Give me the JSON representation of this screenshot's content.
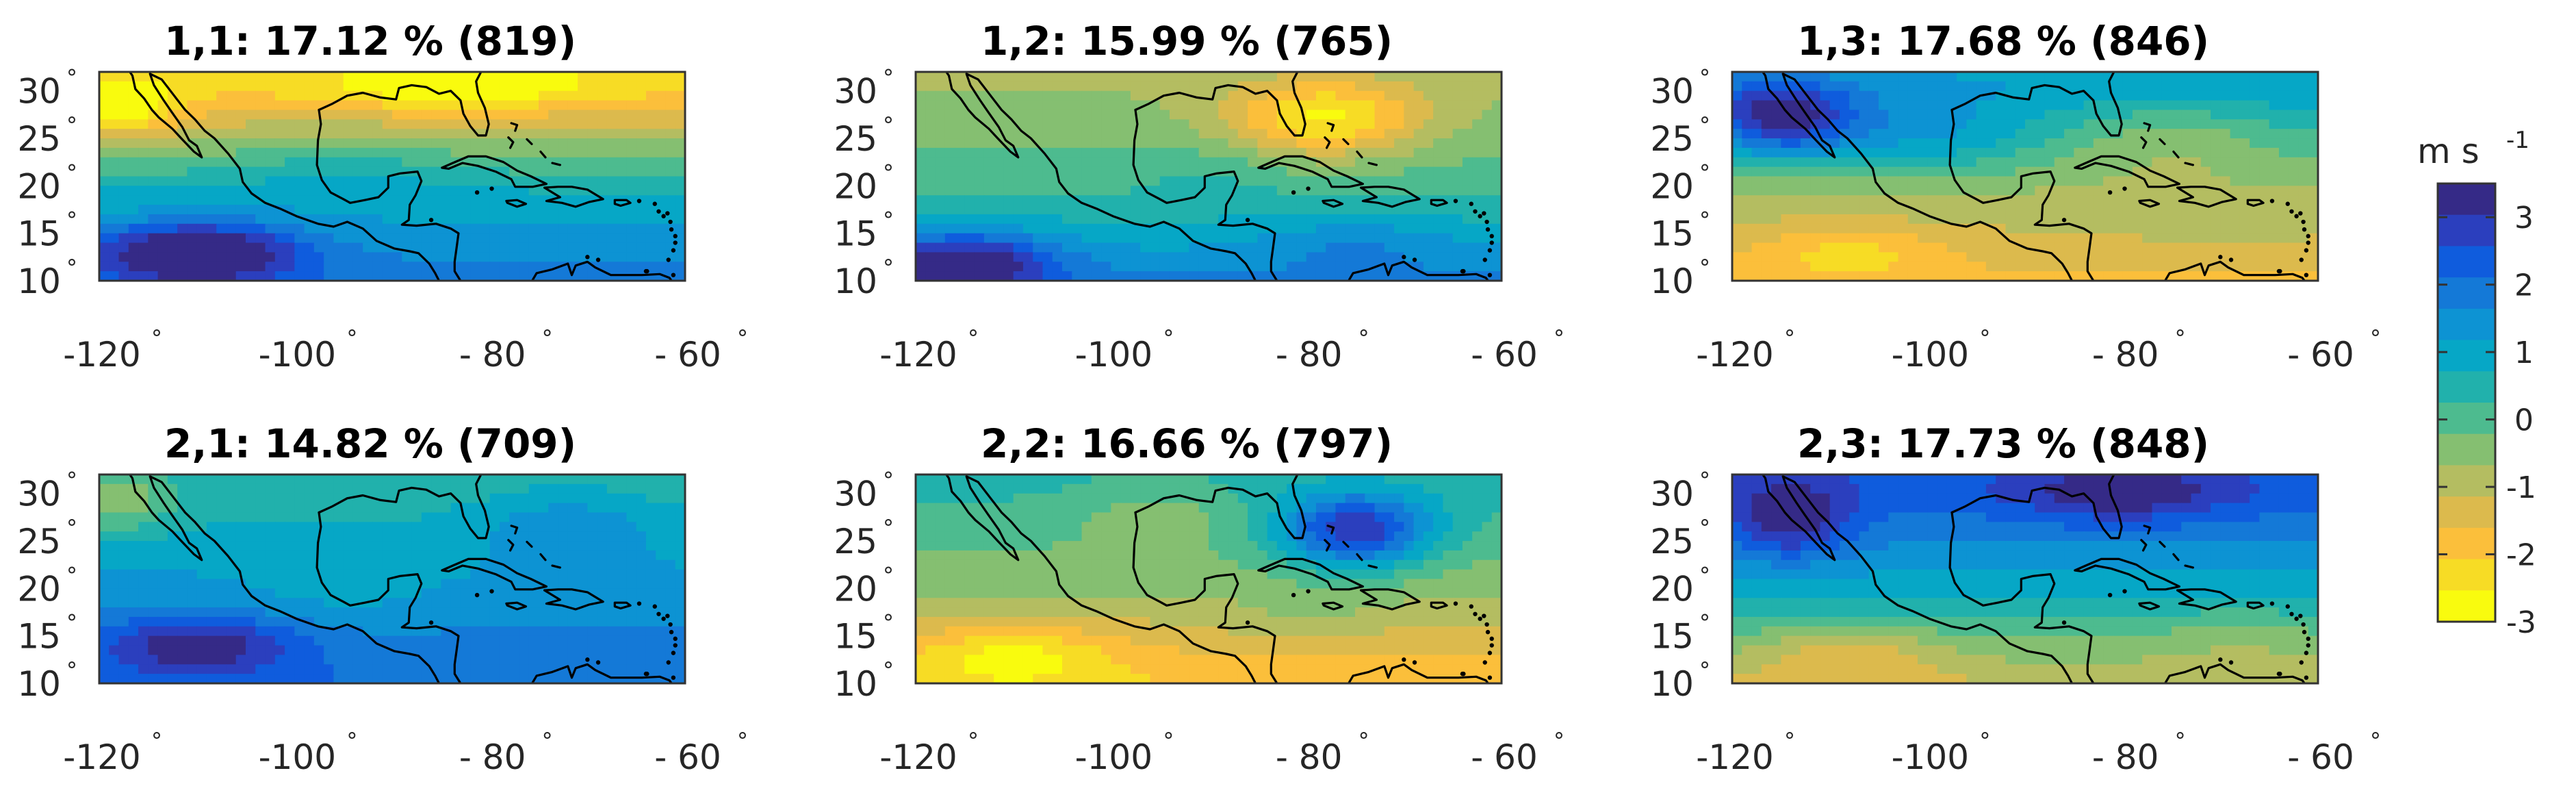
{
  "figure": {
    "colorbar": {
      "unit": "m s",
      "unit_exponent": "-1",
      "ticks": [
        "3",
        "2",
        "1",
        "0",
        "-1",
        "-2",
        "-3"
      ],
      "levels": [
        3.5,
        3,
        2.5,
        2,
        1.5,
        1,
        0.5,
        0,
        -0.5,
        -1,
        -1.5,
        -2,
        -2.5,
        -3
      ],
      "colors": [
        "#352a87",
        "#2b3fbe",
        "#0f5cdd",
        "#1479d7",
        "#0d93d3",
        "#06a7c6",
        "#21b1ac",
        "#4dbb8f",
        "#85bf71",
        "#b4bd61",
        "#dcba4d",
        "#fbbf3b",
        "#f7dc25",
        "#f9fb0e"
      ]
    },
    "panels": [
      {
        "id": "1,1",
        "title": "1,1:   17.12 % (819)",
        "mode": "p11"
      },
      {
        "id": "1,2",
        "title": "1,2:   15.99 % (765)",
        "mode": "p12"
      },
      {
        "id": "1,3",
        "title": "1,3:   17.68 % (846)",
        "mode": "p13"
      },
      {
        "id": "2,1",
        "title": "2,1:   14.82 % (709)",
        "mode": "p21"
      },
      {
        "id": "2,2",
        "title": "2,2:   16.66 % (797)",
        "mode": "p22"
      },
      {
        "id": "2,3",
        "title": "2,3:   17.73 % (848)",
        "mode": "p23"
      }
    ],
    "axes": {
      "lat_ticks": [
        "30",
        "25",
        "20",
        "15",
        "10"
      ],
      "lon_ticks": [
        "-120",
        "-100",
        "- 80",
        "- 60"
      ],
      "degree_symbol": "°"
    }
  }
}
